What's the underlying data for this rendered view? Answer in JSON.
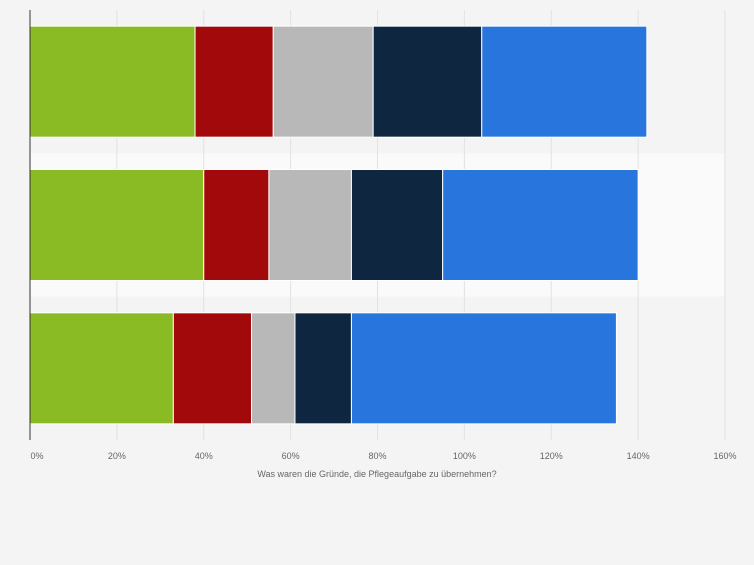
{
  "chart_data": {
    "type": "bar",
    "orientation": "horizontal",
    "stacked": true,
    "categories": [
      "",
      "",
      ""
    ],
    "xlabel": "Was waren die Gründe, die Pflegeaufgabe zu übernehmen?",
    "xlim": [
      0,
      160
    ],
    "xticks": [
      "0%",
      "20%",
      "40%",
      "60%",
      "80%",
      "100%",
      "120%",
      "140%",
      "160%"
    ],
    "grid": true,
    "legend": "none",
    "series": [
      {
        "color": "#8aba24",
        "values": [
          38,
          40,
          33
        ]
      },
      {
        "color": "#a2090b",
        "values": [
          18,
          15,
          18
        ]
      },
      {
        "color": "#b8b8b8",
        "values": [
          23,
          19,
          10
        ]
      },
      {
        "color": "#0f2640",
        "values": [
          25,
          21,
          13
        ]
      },
      {
        "color": "#2876dd",
        "values": [
          38,
          45,
          61
        ]
      }
    ]
  }
}
